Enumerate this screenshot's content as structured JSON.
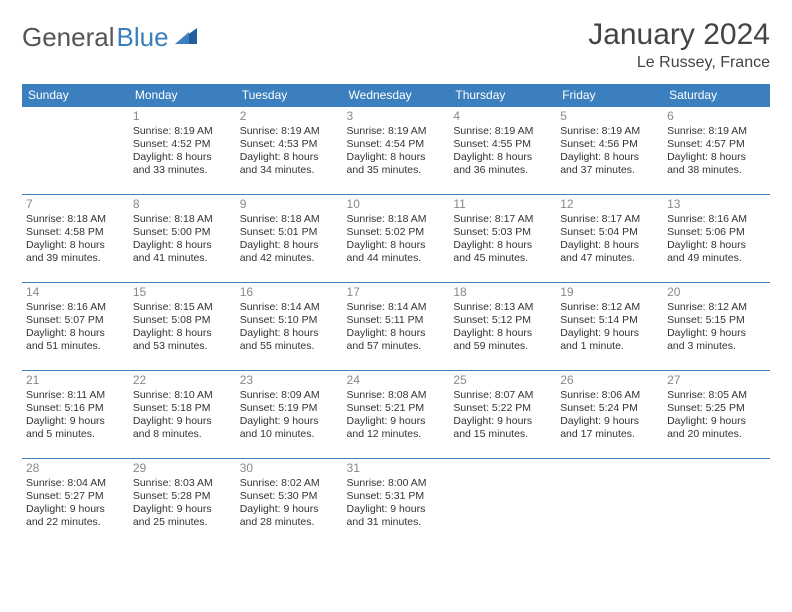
{
  "logo": {
    "text1": "General",
    "text2": "Blue"
  },
  "title": "January 2024",
  "location": "Le Russey, France",
  "header_color": "#3b7fbf",
  "border_color": "#3b7fbf",
  "weekdays": [
    "Sunday",
    "Monday",
    "Tuesday",
    "Wednesday",
    "Thursday",
    "Friday",
    "Saturday"
  ],
  "weeks": [
    [
      null,
      {
        "n": "1",
        "sr": "Sunrise: 8:19 AM",
        "ss": "Sunset: 4:52 PM",
        "d1": "Daylight: 8 hours",
        "d2": "and 33 minutes."
      },
      {
        "n": "2",
        "sr": "Sunrise: 8:19 AM",
        "ss": "Sunset: 4:53 PM",
        "d1": "Daylight: 8 hours",
        "d2": "and 34 minutes."
      },
      {
        "n": "3",
        "sr": "Sunrise: 8:19 AM",
        "ss": "Sunset: 4:54 PM",
        "d1": "Daylight: 8 hours",
        "d2": "and 35 minutes."
      },
      {
        "n": "4",
        "sr": "Sunrise: 8:19 AM",
        "ss": "Sunset: 4:55 PM",
        "d1": "Daylight: 8 hours",
        "d2": "and 36 minutes."
      },
      {
        "n": "5",
        "sr": "Sunrise: 8:19 AM",
        "ss": "Sunset: 4:56 PM",
        "d1": "Daylight: 8 hours",
        "d2": "and 37 minutes."
      },
      {
        "n": "6",
        "sr": "Sunrise: 8:19 AM",
        "ss": "Sunset: 4:57 PM",
        "d1": "Daylight: 8 hours",
        "d2": "and 38 minutes."
      }
    ],
    [
      {
        "n": "7",
        "sr": "Sunrise: 8:18 AM",
        "ss": "Sunset: 4:58 PM",
        "d1": "Daylight: 8 hours",
        "d2": "and 39 minutes."
      },
      {
        "n": "8",
        "sr": "Sunrise: 8:18 AM",
        "ss": "Sunset: 5:00 PM",
        "d1": "Daylight: 8 hours",
        "d2": "and 41 minutes."
      },
      {
        "n": "9",
        "sr": "Sunrise: 8:18 AM",
        "ss": "Sunset: 5:01 PM",
        "d1": "Daylight: 8 hours",
        "d2": "and 42 minutes."
      },
      {
        "n": "10",
        "sr": "Sunrise: 8:18 AM",
        "ss": "Sunset: 5:02 PM",
        "d1": "Daylight: 8 hours",
        "d2": "and 44 minutes."
      },
      {
        "n": "11",
        "sr": "Sunrise: 8:17 AM",
        "ss": "Sunset: 5:03 PM",
        "d1": "Daylight: 8 hours",
        "d2": "and 45 minutes."
      },
      {
        "n": "12",
        "sr": "Sunrise: 8:17 AM",
        "ss": "Sunset: 5:04 PM",
        "d1": "Daylight: 8 hours",
        "d2": "and 47 minutes."
      },
      {
        "n": "13",
        "sr": "Sunrise: 8:16 AM",
        "ss": "Sunset: 5:06 PM",
        "d1": "Daylight: 8 hours",
        "d2": "and 49 minutes."
      }
    ],
    [
      {
        "n": "14",
        "sr": "Sunrise: 8:16 AM",
        "ss": "Sunset: 5:07 PM",
        "d1": "Daylight: 8 hours",
        "d2": "and 51 minutes."
      },
      {
        "n": "15",
        "sr": "Sunrise: 8:15 AM",
        "ss": "Sunset: 5:08 PM",
        "d1": "Daylight: 8 hours",
        "d2": "and 53 minutes."
      },
      {
        "n": "16",
        "sr": "Sunrise: 8:14 AM",
        "ss": "Sunset: 5:10 PM",
        "d1": "Daylight: 8 hours",
        "d2": "and 55 minutes."
      },
      {
        "n": "17",
        "sr": "Sunrise: 8:14 AM",
        "ss": "Sunset: 5:11 PM",
        "d1": "Daylight: 8 hours",
        "d2": "and 57 minutes."
      },
      {
        "n": "18",
        "sr": "Sunrise: 8:13 AM",
        "ss": "Sunset: 5:12 PM",
        "d1": "Daylight: 8 hours",
        "d2": "and 59 minutes."
      },
      {
        "n": "19",
        "sr": "Sunrise: 8:12 AM",
        "ss": "Sunset: 5:14 PM",
        "d1": "Daylight: 9 hours",
        "d2": "and 1 minute."
      },
      {
        "n": "20",
        "sr": "Sunrise: 8:12 AM",
        "ss": "Sunset: 5:15 PM",
        "d1": "Daylight: 9 hours",
        "d2": "and 3 minutes."
      }
    ],
    [
      {
        "n": "21",
        "sr": "Sunrise: 8:11 AM",
        "ss": "Sunset: 5:16 PM",
        "d1": "Daylight: 9 hours",
        "d2": "and 5 minutes."
      },
      {
        "n": "22",
        "sr": "Sunrise: 8:10 AM",
        "ss": "Sunset: 5:18 PM",
        "d1": "Daylight: 9 hours",
        "d2": "and 8 minutes."
      },
      {
        "n": "23",
        "sr": "Sunrise: 8:09 AM",
        "ss": "Sunset: 5:19 PM",
        "d1": "Daylight: 9 hours",
        "d2": "and 10 minutes."
      },
      {
        "n": "24",
        "sr": "Sunrise: 8:08 AM",
        "ss": "Sunset: 5:21 PM",
        "d1": "Daylight: 9 hours",
        "d2": "and 12 minutes."
      },
      {
        "n": "25",
        "sr": "Sunrise: 8:07 AM",
        "ss": "Sunset: 5:22 PM",
        "d1": "Daylight: 9 hours",
        "d2": "and 15 minutes."
      },
      {
        "n": "26",
        "sr": "Sunrise: 8:06 AM",
        "ss": "Sunset: 5:24 PM",
        "d1": "Daylight: 9 hours",
        "d2": "and 17 minutes."
      },
      {
        "n": "27",
        "sr": "Sunrise: 8:05 AM",
        "ss": "Sunset: 5:25 PM",
        "d1": "Daylight: 9 hours",
        "d2": "and 20 minutes."
      }
    ],
    [
      {
        "n": "28",
        "sr": "Sunrise: 8:04 AM",
        "ss": "Sunset: 5:27 PM",
        "d1": "Daylight: 9 hours",
        "d2": "and 22 minutes."
      },
      {
        "n": "29",
        "sr": "Sunrise: 8:03 AM",
        "ss": "Sunset: 5:28 PM",
        "d1": "Daylight: 9 hours",
        "d2": "and 25 minutes."
      },
      {
        "n": "30",
        "sr": "Sunrise: 8:02 AM",
        "ss": "Sunset: 5:30 PM",
        "d1": "Daylight: 9 hours",
        "d2": "and 28 minutes."
      },
      {
        "n": "31",
        "sr": "Sunrise: 8:00 AM",
        "ss": "Sunset: 5:31 PM",
        "d1": "Daylight: 9 hours",
        "d2": "and 31 minutes."
      },
      null,
      null,
      null
    ]
  ]
}
